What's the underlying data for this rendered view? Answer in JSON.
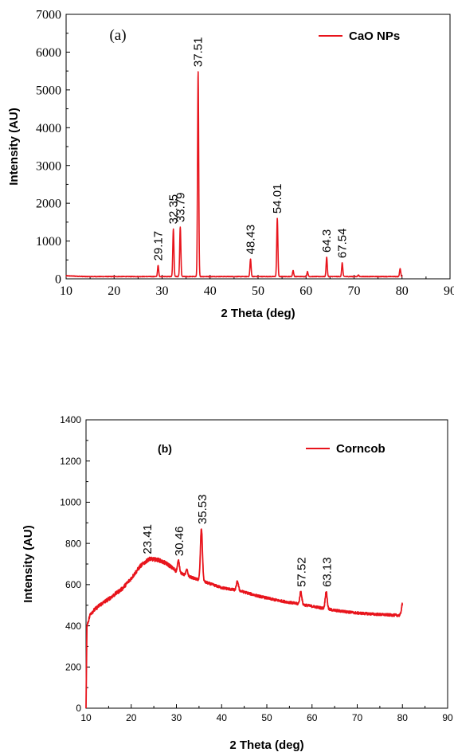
{
  "chart_data": [
    {
      "type": "line",
      "panel_label": "(a)",
      "xlabel": "2 Theta (deg)",
      "ylabel": "Intensity (AU)",
      "xlim": [
        10,
        90
      ],
      "ylim": [
        0,
        7000
      ],
      "xticks": [
        10,
        20,
        30,
        40,
        50,
        60,
        70,
        80,
        90
      ],
      "yticks": [
        0,
        1000,
        2000,
        3000,
        4000,
        5000,
        6000,
        7000
      ],
      "legend_position": "top-right",
      "color": "#e8141c",
      "series": [
        {
          "name": "CaO NPs",
          "baseline": 60,
          "x_range": [
            10,
            80
          ],
          "peaks": [
            {
              "x": 29.17,
              "y": 350
            },
            {
              "x": 32.35,
              "y": 1320
            },
            {
              "x": 33.79,
              "y": 1370
            },
            {
              "x": 37.51,
              "y": 5480
            },
            {
              "x": 48.43,
              "y": 520
            },
            {
              "x": 54.01,
              "y": 1600
            },
            {
              "x": 57.3,
              "y": 220
            },
            {
              "x": 60.3,
              "y": 190
            },
            {
              "x": 64.3,
              "y": 570
            },
            {
              "x": 67.54,
              "y": 420
            },
            {
              "x": 70.9,
              "y": 100
            },
            {
              "x": 79.6,
              "y": 270
            }
          ]
        }
      ],
      "annotations": [
        {
          "x": 29.17,
          "label": "29.17"
        },
        {
          "x": 32.35,
          "label": "32.35"
        },
        {
          "x": 33.79,
          "label": "33.79"
        },
        {
          "x": 37.51,
          "label": "37.51"
        },
        {
          "x": 48.43,
          "label": "48.43"
        },
        {
          "x": 54.01,
          "label": "54.01"
        },
        {
          "x": 64.3,
          "label": "64.3"
        },
        {
          "x": 67.54,
          "label": "67.54"
        }
      ]
    },
    {
      "type": "line",
      "panel_label": "(b)",
      "xlabel": "2 Theta (deg)",
      "ylabel": "Intensity (AU)",
      "xlim": [
        10,
        90
      ],
      "ylim": [
        0,
        1400
      ],
      "xticks": [
        10,
        20,
        30,
        40,
        50,
        60,
        70,
        80,
        90
      ],
      "yticks": [
        0,
        200,
        400,
        600,
        800,
        1000,
        1200,
        1400
      ],
      "legend_position": "top-right",
      "color": "#e8141c",
      "series": [
        {
          "name": "Corncob",
          "x_range": [
            10,
            80
          ],
          "envelope": [
            [
              10.0,
              0
            ],
            [
              10.2,
              400
            ],
            [
              11,
              460
            ],
            [
              13,
              500
            ],
            [
              15,
              530
            ],
            [
              18,
              580
            ],
            [
              20,
              630
            ],
            [
              22,
              690
            ],
            [
              24,
              725
            ],
            [
              26,
              720
            ],
            [
              28,
              700
            ],
            [
              30,
              665
            ],
            [
              32,
              645
            ],
            [
              34,
              630
            ],
            [
              38,
              600
            ],
            [
              40,
              585
            ],
            [
              44,
              570
            ],
            [
              48,
              545
            ],
            [
              52,
              525
            ],
            [
              56,
              510
            ],
            [
              60,
              495
            ],
            [
              65,
              475
            ],
            [
              70,
              462
            ],
            [
              75,
              455
            ],
            [
              80,
              450
            ]
          ],
          "peaks": [
            {
              "x": 30.46,
              "y": 715
            },
            {
              "x": 32.3,
              "y": 670
            },
            {
              "x": 35.53,
              "y": 870
            },
            {
              "x": 43.5,
              "y": 615
            },
            {
              "x": 57.52,
              "y": 565
            },
            {
              "x": 63.13,
              "y": 565
            },
            {
              "x": 80.0,
              "y": 505
            }
          ]
        }
      ],
      "annotations": [
        {
          "x": 23.41,
          "label": "23.41"
        },
        {
          "x": 30.46,
          "label": "30.46"
        },
        {
          "x": 35.53,
          "label": "35.53"
        },
        {
          "x": 57.52,
          "label": "57.52"
        },
        {
          "x": 63.13,
          "label": "63.13"
        }
      ]
    }
  ]
}
